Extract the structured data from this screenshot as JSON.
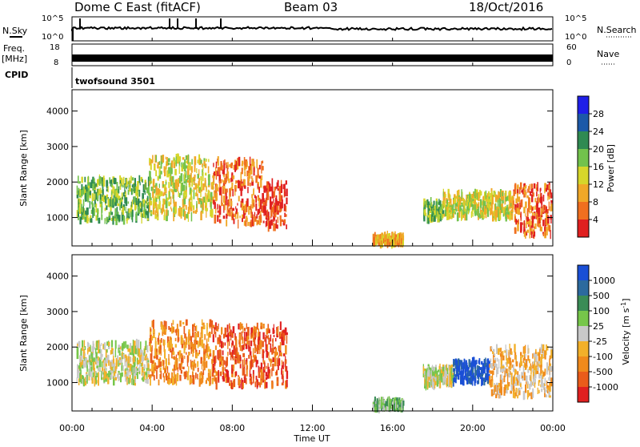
{
  "header": {
    "station": "Dome C East (fitACF)",
    "beam": "Beam 03",
    "date": "18/Oct/2016"
  },
  "side_labels": {
    "nsky": "N.Sky",
    "freq": "Freq.",
    "mhz": "[MHz]",
    "cpid": "CPID",
    "nsearch": "N.Search",
    "nave": "Nave"
  },
  "nsky_ticks": {
    "top": "10^5",
    "bottom": "10^0"
  },
  "freq_ticks": {
    "top": "18",
    "bottom": "8"
  },
  "nave_ticks": {
    "top": "60",
    "bottom": "0"
  },
  "cpid_text": "twofsound 3501",
  "range_axis": {
    "label": "Slant Range [km]",
    "ticks": [
      "1000",
      "2000",
      "3000",
      "4000"
    ],
    "range": [
      200,
      4600
    ]
  },
  "time_axis": {
    "label": "Time UT",
    "ticks": [
      "00:00",
      "04:00",
      "08:00",
      "12:00",
      "16:00",
      "20:00",
      "00:00"
    ],
    "range_hours": [
      0,
      24
    ]
  },
  "power_scale": {
    "label": "Power [dB]",
    "ticks": [
      "4",
      "8",
      "12",
      "16",
      "20",
      "24",
      "28"
    ],
    "colors": [
      "#1f1fe8",
      "#1c59a8",
      "#2f8a52",
      "#72c24c",
      "#d6d62a",
      "#f0a828",
      "#f06f1f",
      "#e02020"
    ]
  },
  "velocity_scale": {
    "label": "Velocity [m s",
    "label_sup": "-1",
    "label_end": "]",
    "ticks": [
      "1000",
      "500",
      "100",
      "25",
      "-25",
      "-100",
      "-500",
      "-1000"
    ],
    "colors": [
      "#1a4fd6",
      "#2c6a9e",
      "#3a8c56",
      "#76c64a",
      "#c8c8c8",
      "#f2b02a",
      "#f08a1c",
      "#ea5c1a",
      "#e02020"
    ]
  },
  "chart_data": [
    {
      "type": "heatmap",
      "title": "",
      "xlabel": "Time UT",
      "ylabel": "Slant Range [km]",
      "quantity": "Power [dB]",
      "regions": [
        {
          "t0": 0.2,
          "t1": 3.8,
          "r0": 900,
          "r1": 2100,
          "level": 3
        },
        {
          "t0": 3.8,
          "t1": 7.0,
          "r0": 1000,
          "r1": 2700,
          "level": 4
        },
        {
          "t0": 7.0,
          "t1": 9.5,
          "r0": 800,
          "r1": 2600,
          "level": 6
        },
        {
          "t0": 9.5,
          "t1": 10.7,
          "r0": 700,
          "r1": 2000,
          "level": 7
        },
        {
          "t0": 15.0,
          "t1": 16.5,
          "r0": 250,
          "r1": 500,
          "level": 5
        },
        {
          "t0": 17.5,
          "t1": 18.5,
          "r0": 900,
          "r1": 1450,
          "level": 3
        },
        {
          "t0": 18.5,
          "t1": 22.0,
          "r0": 1000,
          "r1": 1700,
          "level": 4
        },
        {
          "t0": 22.0,
          "t1": 23.9,
          "r0": 500,
          "r1": 1900,
          "level": 6
        }
      ]
    },
    {
      "type": "heatmap",
      "title": "",
      "xlabel": "Time UT",
      "ylabel": "Slant Range [km]",
      "quantity": "Velocity",
      "regions": [
        {
          "t0": 0.2,
          "t1": 3.8,
          "r0": 1000,
          "r1": 2100,
          "level": 4
        },
        {
          "t0": 3.8,
          "t1": 7.0,
          "r0": 1000,
          "r1": 2700,
          "level": 6
        },
        {
          "t0": 7.0,
          "t1": 10.7,
          "r0": 900,
          "r1": 2600,
          "level": 7
        },
        {
          "t0": 15.0,
          "t1": 16.5,
          "r0": 250,
          "r1": 500,
          "level": 3
        },
        {
          "t0": 17.5,
          "t1": 19.0,
          "r0": 900,
          "r1": 1450,
          "level": 4
        },
        {
          "t0": 19.0,
          "t1": 20.8,
          "r0": 1000,
          "r1": 1600,
          "level": 0
        },
        {
          "t0": 20.8,
          "t1": 23.9,
          "r0": 600,
          "r1": 2000,
          "level": 5
        }
      ]
    }
  ]
}
